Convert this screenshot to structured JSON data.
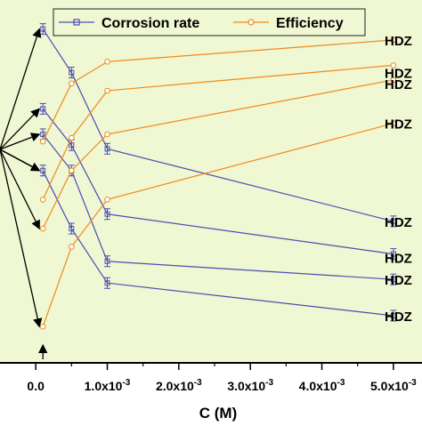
{
  "colors": {
    "background": "#eff7d3",
    "corrosion_rate": "#4a4fb0",
    "efficiency": "#f08a1c",
    "axis": "#000000"
  },
  "legend_labels": {
    "corrosion": "Corrosion rate",
    "efficiency": "Efficiency"
  },
  "chart_data": {
    "type": "line",
    "xlabel": "C (M)",
    "xlim": [
      -0.0005,
      0.0054
    ],
    "ylim": [
      0,
      1
    ],
    "grid": false,
    "legend_position": "top-center",
    "x_ticks": [
      {
        "value": 0.0,
        "label": "0.0"
      },
      {
        "value": 0.001,
        "label": "1.0x10",
        "exp": "-3"
      },
      {
        "value": 0.002,
        "label": "2.0x10",
        "exp": "-3"
      },
      {
        "value": 0.003,
        "label": "3.0x10",
        "exp": "-3"
      },
      {
        "value": 0.004,
        "label": "4.0x10",
        "exp": "-3"
      },
      {
        "value": 0.005,
        "label": "5.0x10",
        "exp": "-3"
      }
    ],
    "x": [
      0.0001,
      0.0005,
      0.001,
      0.005
    ],
    "series": [
      {
        "group": "corrosion",
        "values": [
          0.92,
          0.8,
          0.59,
          0.39
        ]
      },
      {
        "group": "corrosion",
        "values": [
          0.7,
          0.6,
          0.41,
          0.3
        ]
      },
      {
        "group": "corrosion",
        "values": [
          0.63,
          0.53,
          0.28,
          0.23
        ]
      },
      {
        "group": "corrosion",
        "values": [
          0.53,
          0.37,
          0.22,
          0.13
        ]
      },
      {
        "group": "efficiency",
        "values": [
          0.61,
          0.77,
          0.83,
          0.89
        ]
      },
      {
        "group": "efficiency",
        "values": [
          0.45,
          0.62,
          0.75,
          0.82
        ]
      },
      {
        "group": "efficiency",
        "values": [
          0.37,
          0.53,
          0.63,
          0.78
        ]
      },
      {
        "group": "efficiency",
        "values": [
          0.1,
          0.32,
          0.45,
          0.66
        ]
      }
    ],
    "right_labels": [
      {
        "text": "HDZ",
        "y": 0.89
      },
      {
        "text": "HDZ",
        "y": 0.8
      },
      {
        "text": "HDZ",
        "y": 0.77
      },
      {
        "text": "HDZ",
        "y": 0.66
      },
      {
        "text": "HDZ",
        "y": 0.39
      },
      {
        "text": "HDZ",
        "y": 0.29
      },
      {
        "text": "HDZ",
        "y": 0.23
      },
      {
        "text": "HDZ",
        "y": 0.13
      }
    ],
    "arrow_targets": [
      {
        "x": 0.0001,
        "y": 0.92
      },
      {
        "x": 0.0001,
        "y": 0.7
      },
      {
        "x": 0.0001,
        "y": 0.63
      },
      {
        "x": 0.0001,
        "y": 0.53
      },
      {
        "x": 0.0001,
        "y": 0.53
      },
      {
        "x": 0.0001,
        "y": 0.37
      },
      {
        "x": 0.0001,
        "y": 0.1
      }
    ]
  }
}
